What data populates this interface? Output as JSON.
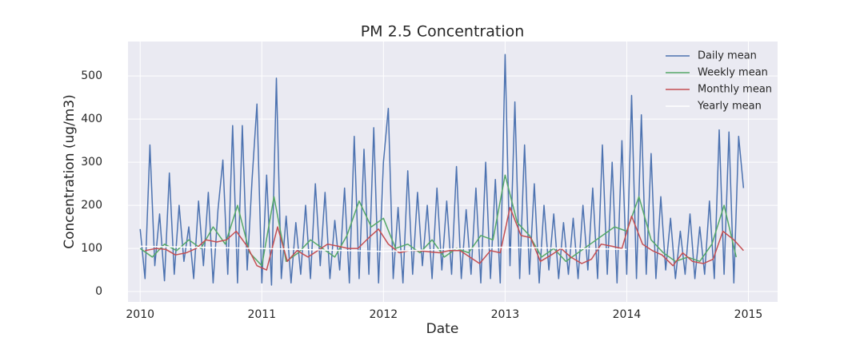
{
  "chart_data": {
    "type": "line",
    "title": "PM 2.5 Concentration",
    "x_label": "Date",
    "y_label": "Concentration (ug/m3)",
    "xlim": [
      2009.9,
      2015.24
    ],
    "xticks": [
      2010,
      2011,
      2012,
      2013,
      2014,
      2015
    ],
    "ylim": [
      -24,
      580
    ],
    "yticks": [
      0,
      100,
      200,
      300,
      400,
      500
    ],
    "grid": true,
    "legend": "upper right",
    "series": [
      {
        "name": "Daily mean",
        "color": "#4c72b0",
        "x": [
          2010.0,
          2010.04,
          2010.08,
          2010.12,
          2010.16,
          2010.2,
          2010.24,
          2010.28,
          2010.32,
          2010.36,
          2010.4,
          2010.44,
          2010.48,
          2010.52,
          2010.56,
          2010.6,
          2010.64,
          2010.68,
          2010.72,
          2010.76,
          2010.8,
          2010.84,
          2010.88,
          2010.92,
          2010.96,
          2011.0,
          2011.04,
          2011.08,
          2011.12,
          2011.16,
          2011.2,
          2011.24,
          2011.28,
          2011.32,
          2011.36,
          2011.4,
          2011.44,
          2011.48,
          2011.52,
          2011.56,
          2011.6,
          2011.64,
          2011.68,
          2011.72,
          2011.76,
          2011.8,
          2011.84,
          2011.88,
          2011.92,
          2011.96,
          2012.0,
          2012.04,
          2012.08,
          2012.12,
          2012.16,
          2012.2,
          2012.24,
          2012.28,
          2012.32,
          2012.36,
          2012.4,
          2012.44,
          2012.48,
          2012.52,
          2012.56,
          2012.6,
          2012.64,
          2012.68,
          2012.72,
          2012.76,
          2012.8,
          2012.84,
          2012.88,
          2012.92,
          2012.96,
          2013.0,
          2013.04,
          2013.08,
          2013.12,
          2013.16,
          2013.2,
          2013.24,
          2013.28,
          2013.32,
          2013.36,
          2013.4,
          2013.44,
          2013.48,
          2013.52,
          2013.56,
          2013.6,
          2013.64,
          2013.68,
          2013.72,
          2013.76,
          2013.8,
          2013.84,
          2013.88,
          2013.92,
          2013.96,
          2014.0,
          2014.04,
          2014.08,
          2014.12,
          2014.16,
          2014.2,
          2014.24,
          2014.28,
          2014.32,
          2014.36,
          2014.4,
          2014.44,
          2014.48,
          2014.52,
          2014.56,
          2014.6,
          2014.64,
          2014.68,
          2014.72,
          2014.76,
          2014.8,
          2014.84,
          2014.88,
          2014.92,
          2014.96
        ],
        "values": [
          145,
          30,
          340,
          60,
          180,
          25,
          275,
          40,
          200,
          70,
          150,
          30,
          210,
          60,
          230,
          20,
          190,
          305,
          40,
          385,
          20,
          385,
          50,
          260,
          435,
          20,
          270,
          15,
          495,
          30,
          175,
          20,
          160,
          40,
          200,
          30,
          250,
          60,
          230,
          30,
          165,
          50,
          240,
          20,
          360,
          30,
          330,
          40,
          380,
          20,
          300,
          425,
          30,
          195,
          20,
          280,
          40,
          230,
          60,
          200,
          30,
          240,
          50,
          210,
          40,
          290,
          30,
          190,
          40,
          240,
          20,
          300,
          30,
          260,
          20,
          550,
          60,
          440,
          30,
          340,
          40,
          250,
          20,
          200,
          50,
          180,
          30,
          160,
          40,
          170,
          30,
          200,
          50,
          240,
          30,
          340,
          40,
          300,
          20,
          350,
          40,
          455,
          30,
          410,
          40,
          320,
          30,
          220,
          50,
          170,
          30,
          140,
          40,
          180,
          30,
          150,
          40,
          210,
          30,
          375,
          40,
          370,
          20,
          360,
          240
        ]
      },
      {
        "name": "Weekly mean",
        "color": "#55a868",
        "x": [
          2010.0,
          2010.1,
          2010.2,
          2010.3,
          2010.4,
          2010.5,
          2010.6,
          2010.7,
          2010.8,
          2010.9,
          2011.0,
          2011.1,
          2011.2,
          2011.3,
          2011.4,
          2011.5,
          2011.6,
          2011.7,
          2011.8,
          2011.9,
          2012.0,
          2012.1,
          2012.2,
          2012.3,
          2012.4,
          2012.5,
          2012.6,
          2012.7,
          2012.8,
          2012.9,
          2013.0,
          2013.1,
          2013.2,
          2013.3,
          2013.4,
          2013.5,
          2013.6,
          2013.7,
          2013.8,
          2013.9,
          2014.0,
          2014.1,
          2014.2,
          2014.3,
          2014.4,
          2014.5,
          2014.6,
          2014.7,
          2014.8,
          2014.9
        ],
        "values": [
          100,
          80,
          110,
          95,
          120,
          100,
          150,
          110,
          200,
          90,
          60,
          220,
          70,
          90,
          120,
          100,
          80,
          130,
          210,
          150,
          170,
          100,
          110,
          90,
          120,
          80,
          100,
          90,
          130,
          120,
          270,
          160,
          130,
          80,
          100,
          70,
          90,
          110,
          130,
          150,
          140,
          220,
          120,
          90,
          70,
          80,
          70,
          110,
          200,
          80
        ]
      },
      {
        "name": "Monthly mean",
        "color": "#c44e52",
        "x": [
          2010.04,
          2010.13,
          2010.21,
          2010.29,
          2010.38,
          2010.46,
          2010.54,
          2010.63,
          2010.71,
          2010.79,
          2010.88,
          2010.96,
          2011.04,
          2011.13,
          2011.21,
          2011.29,
          2011.38,
          2011.46,
          2011.54,
          2011.63,
          2011.71,
          2011.79,
          2011.88,
          2011.96,
          2012.04,
          2012.13,
          2012.21,
          2012.29,
          2012.38,
          2012.46,
          2012.54,
          2012.63,
          2012.71,
          2012.79,
          2012.88,
          2012.96,
          2013.04,
          2013.13,
          2013.21,
          2013.29,
          2013.38,
          2013.46,
          2013.54,
          2013.63,
          2013.71,
          2013.79,
          2013.88,
          2013.96,
          2014.04,
          2014.13,
          2014.21,
          2014.29,
          2014.38,
          2014.46,
          2014.54,
          2014.63,
          2014.71,
          2014.79,
          2014.88,
          2014.96
        ],
        "values": [
          95,
          100,
          98,
          85,
          90,
          100,
          120,
          115,
          120,
          140,
          105,
          60,
          50,
          150,
          70,
          95,
          80,
          95,
          110,
          105,
          100,
          100,
          125,
          145,
          110,
          90,
          95,
          95,
          92,
          90,
          95,
          95,
          80,
          65,
          95,
          90,
          195,
          130,
          125,
          70,
          85,
          100,
          80,
          65,
          75,
          110,
          105,
          100,
          175,
          110,
          95,
          85,
          60,
          90,
          70,
          65,
          75,
          140,
          120,
          95
        ]
      },
      {
        "name": "Yearly mean",
        "color": "#ffffff",
        "x": [
          2010,
          2011,
          2012,
          2013,
          2014
        ],
        "values": [
          105,
          100,
          93,
          103,
          98
        ]
      }
    ]
  }
}
